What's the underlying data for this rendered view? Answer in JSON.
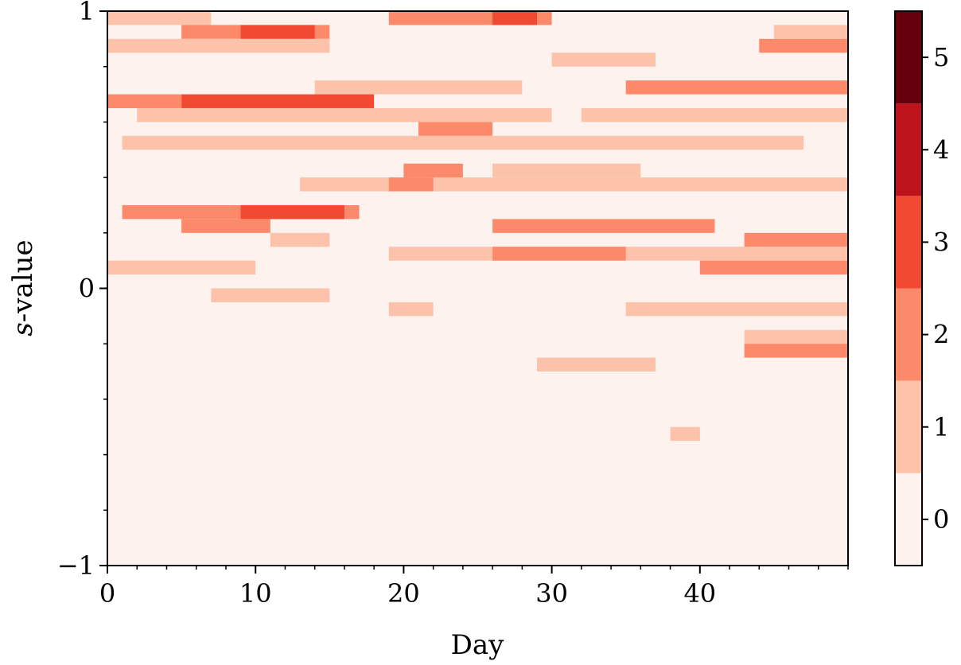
{
  "chart_data": {
    "type": "heatmap",
    "title": "",
    "xlabel": "Day",
    "ylabel_italic": "s",
    "ylabel_rest": "-value",
    "xlim": [
      0,
      50
    ],
    "ylim": [
      -1,
      1
    ],
    "x_ticks": [
      0,
      10,
      20,
      30,
      40
    ],
    "x_tick_labels": [
      "0",
      "10",
      "20",
      "30",
      "40"
    ],
    "y_ticks": [
      -1,
      0,
      1
    ],
    "y_tick_labels": [
      "−1",
      "0",
      "1"
    ],
    "y_bins": 40,
    "colorbar": {
      "levels": [
        0,
        1,
        2,
        3,
        4,
        5
      ],
      "tick_labels": [
        "0",
        "1",
        "2",
        "3",
        "4",
        "5"
      ],
      "colors": [
        "#fdf2ee",
        "#fcc2aa",
        "#fc8a6a",
        "#f24933",
        "#bc141a",
        "#67000d"
      ],
      "range": [
        -0.5,
        5.5
      ]
    },
    "value_segments": [
      {
        "s": 0.975,
        "x0": 0,
        "x1": 7,
        "v": 1
      },
      {
        "s": 0.975,
        "x0": 19,
        "x1": 30,
        "v": 2
      },
      {
        "s": 0.975,
        "x0": 26,
        "x1": 29,
        "v": 3
      },
      {
        "s": 0.925,
        "x0": 5,
        "x1": 15,
        "v": 2
      },
      {
        "s": 0.925,
        "x0": 9,
        "x1": 14,
        "v": 3
      },
      {
        "s": 0.925,
        "x0": 45,
        "x1": 50,
        "v": 1
      },
      {
        "s": 0.875,
        "x0": 0,
        "x1": 15,
        "v": 1
      },
      {
        "s": 0.875,
        "x0": 44,
        "x1": 50,
        "v": 2
      },
      {
        "s": 0.825,
        "x0": 30,
        "x1": 37,
        "v": 1
      },
      {
        "s": 0.725,
        "x0": 14,
        "x1": 28,
        "v": 1
      },
      {
        "s": 0.725,
        "x0": 35,
        "x1": 50,
        "v": 2
      },
      {
        "s": 0.675,
        "x0": 5,
        "x1": 18,
        "v": 3
      },
      {
        "s": 0.675,
        "x0": 0,
        "x1": 5,
        "v": 2
      },
      {
        "s": 0.625,
        "x0": 2,
        "x1": 30,
        "v": 1
      },
      {
        "s": 0.625,
        "x0": 32,
        "x1": 50,
        "v": 1
      },
      {
        "s": 0.575,
        "x0": 21,
        "x1": 26,
        "v": 2
      },
      {
        "s": 0.525,
        "x0": 1,
        "x1": 47,
        "v": 1
      },
      {
        "s": 0.425,
        "x0": 20,
        "x1": 24,
        "v": 2
      },
      {
        "s": 0.425,
        "x0": 26,
        "x1": 36,
        "v": 1
      },
      {
        "s": 0.375,
        "x0": 13,
        "x1": 50,
        "v": 1
      },
      {
        "s": 0.375,
        "x0": 19,
        "x1": 22,
        "v": 2
      },
      {
        "s": 0.275,
        "x0": 1,
        "x1": 17,
        "v": 2
      },
      {
        "s": 0.275,
        "x0": 9,
        "x1": 16,
        "v": 3
      },
      {
        "s": 0.225,
        "x0": 26,
        "x1": 41,
        "v": 2
      },
      {
        "s": 0.225,
        "x0": 5,
        "x1": 11,
        "v": 2
      },
      {
        "s": 0.175,
        "x0": 11,
        "x1": 15,
        "v": 1
      },
      {
        "s": 0.175,
        "x0": 43,
        "x1": 50,
        "v": 2
      },
      {
        "s": 0.125,
        "x0": 19,
        "x1": 50,
        "v": 1
      },
      {
        "s": 0.125,
        "x0": 26,
        "x1": 35,
        "v": 2
      },
      {
        "s": 0.075,
        "x0": 0,
        "x1": 10,
        "v": 1
      },
      {
        "s": 0.075,
        "x0": 40,
        "x1": 50,
        "v": 2
      },
      {
        "s": -0.025,
        "x0": 7,
        "x1": 15,
        "v": 1
      },
      {
        "s": -0.075,
        "x0": 19,
        "x1": 22,
        "v": 1
      },
      {
        "s": -0.075,
        "x0": 35,
        "x1": 50,
        "v": 1
      },
      {
        "s": -0.175,
        "x0": 43,
        "x1": 50,
        "v": 1
      },
      {
        "s": -0.225,
        "x0": 43,
        "x1": 50,
        "v": 2
      },
      {
        "s": -0.275,
        "x0": 29,
        "x1": 37,
        "v": 1
      },
      {
        "s": -0.525,
        "x0": 38,
        "x1": 40,
        "v": 1
      }
    ]
  }
}
